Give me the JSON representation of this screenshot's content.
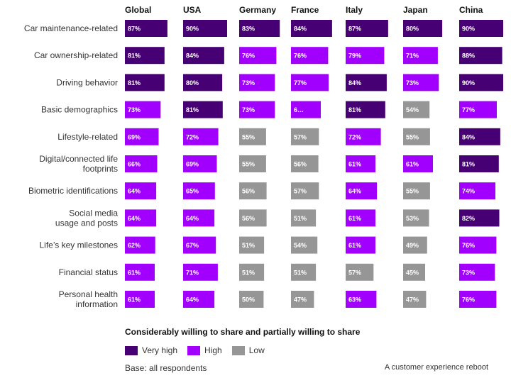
{
  "chart_data": {
    "type": "heatmap",
    "columns": [
      "Global",
      "USA",
      "Germany",
      "France",
      "Italy",
      "Japan",
      "China"
    ],
    "rows": [
      {
        "label": [
          "Car maintenance-related"
        ],
        "values": [
          87,
          90,
          83,
          84,
          87,
          80,
          90
        ],
        "levels": [
          "very_high",
          "very_high",
          "very_high",
          "very_high",
          "very_high",
          "very_high",
          "very_high"
        ]
      },
      {
        "label": [
          "Car ownership-related"
        ],
        "values": [
          81,
          84,
          76,
          76,
          79,
          71,
          88
        ],
        "levels": [
          "very_high",
          "very_high",
          "high",
          "high",
          "high",
          "high",
          "very_high"
        ]
      },
      {
        "label": [
          "Driving behavior"
        ],
        "values": [
          81,
          80,
          73,
          77,
          84,
          73,
          90
        ],
        "levels": [
          "very_high",
          "very_high",
          "high",
          "high",
          "very_high",
          "high",
          "very_high"
        ]
      },
      {
        "label": [
          "Basic demographics"
        ],
        "values": [
          73,
          81,
          73,
          null,
          81,
          54,
          77
        ],
        "levels": [
          "high",
          "very_high",
          "high",
          "high",
          "very_high",
          "low",
          "high"
        ],
        "display": [
          null,
          null,
          null,
          "6…",
          null,
          null,
          null
        ]
      },
      {
        "label": [
          "Lifestyle-related"
        ],
        "values": [
          69,
          72,
          55,
          57,
          72,
          55,
          84
        ],
        "levels": [
          "high",
          "high",
          "low",
          "low",
          "high",
          "low",
          "very_high"
        ]
      },
      {
        "label": [
          "Digital/connected life",
          "footprints"
        ],
        "values": [
          66,
          69,
          55,
          56,
          61,
          61,
          81
        ],
        "levels": [
          "high",
          "high",
          "low",
          "low",
          "high",
          "high",
          "very_high"
        ]
      },
      {
        "label": [
          "Biometric identifications"
        ],
        "values": [
          64,
          65,
          56,
          57,
          64,
          55,
          74
        ],
        "levels": [
          "high",
          "high",
          "low",
          "low",
          "high",
          "low",
          "high"
        ]
      },
      {
        "label": [
          "Social media",
          "usage and posts"
        ],
        "values": [
          64,
          64,
          56,
          51,
          61,
          53,
          82
        ],
        "levels": [
          "high",
          "high",
          "low",
          "low",
          "high",
          "low",
          "very_high"
        ]
      },
      {
        "label": [
          "Life’s key milestones"
        ],
        "values": [
          62,
          67,
          51,
          54,
          61,
          49,
          76
        ],
        "levels": [
          "high",
          "high",
          "low",
          "low",
          "high",
          "low",
          "high"
        ]
      },
      {
        "label": [
          "Financial status"
        ],
        "values": [
          61,
          71,
          51,
          51,
          57,
          45,
          73
        ],
        "levels": [
          "high",
          "high",
          "low",
          "low",
          "low",
          "low",
          "high"
        ]
      },
      {
        "label": [
          "Personal health",
          "information"
        ],
        "values": [
          61,
          64,
          50,
          47,
          63,
          47,
          76
        ],
        "levels": [
          "high",
          "high",
          "low",
          "low",
          "high",
          "low",
          "high"
        ]
      }
    ],
    "unit": "%",
    "subtitle": "Considerably willing to share and partially willing to share",
    "legend": [
      {
        "key": "very_high",
        "label": "Very high",
        "color": "#460073"
      },
      {
        "key": "high",
        "label": "High",
        "color": "#a100ff"
      },
      {
        "key": "low",
        "label": "Low",
        "color": "#969696"
      }
    ],
    "legend_position": "bottom-left"
  },
  "footer": {
    "base_note": "Base: all respondents",
    "source_note": "A customer experience reboot"
  }
}
